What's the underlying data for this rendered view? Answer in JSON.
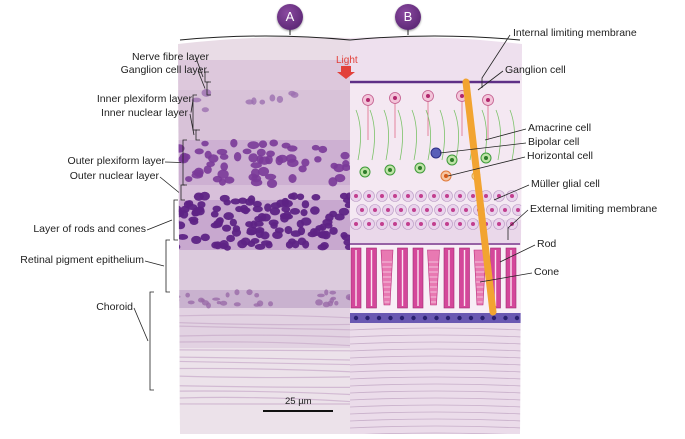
{
  "panels": {
    "a": "A",
    "b": "B"
  },
  "light_label": "Light",
  "scale_bar": "25 µm",
  "left_labels": [
    "Nerve fibre layer",
    "Ganglion cell layer",
    "Inner plexiform layer",
    "Inner nuclear layer",
    "Outer plexiform layer",
    "Outer nuclear layer",
    "Layer of rods and cones",
    "Retinal pigment epithelium",
    "Choroid"
  ],
  "right_labels": [
    "Internal limiting membrane",
    "Ganglion cell",
    "Amacrine cell",
    "Bipolar cell",
    "Horizontal cell",
    "Müller glial cell",
    "External limiting membrane",
    "Rod",
    "Cone"
  ],
  "colors": {
    "badge": "#5e2a7a",
    "light_arrow": "#e2403a",
    "nuclei": "#6a2f8e",
    "muller": "#f2a431",
    "photoreceptor": "#d4479a",
    "rpe": "#5a4aa0"
  }
}
